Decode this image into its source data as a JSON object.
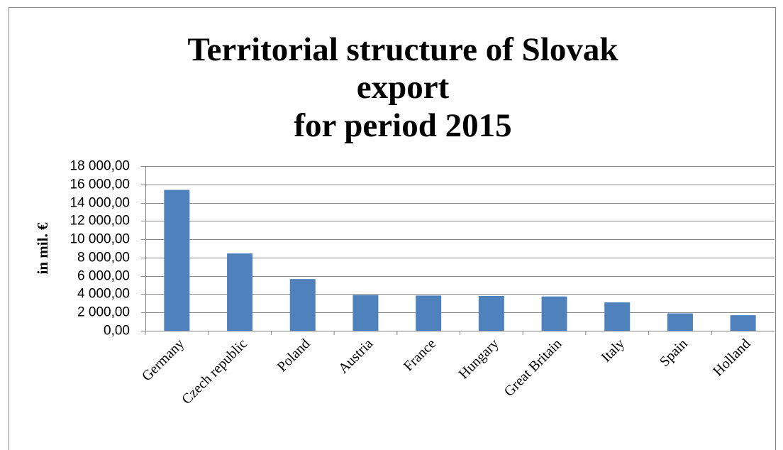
{
  "chart_data": {
    "type": "bar",
    "title": [
      "Territorial structure of Slovak",
      "export",
      "for period 2015"
    ],
    "ylabel": "in mil. €",
    "categories": [
      "Germany",
      "Czech republic",
      "Poland",
      "Austria",
      "France",
      "Hungary",
      "Great Britain",
      "Italy",
      "Spain",
      "Holland"
    ],
    "values": [
      15400,
      8450,
      5650,
      3900,
      3850,
      3800,
      3750,
      3100,
      1900,
      1700
    ],
    "color": "#4f81bd",
    "ylim": [
      0,
      18000
    ],
    "yticks": [
      {
        "value": 0,
        "label": "0,00"
      },
      {
        "value": 2000,
        "label": "2 000,00"
      },
      {
        "value": 4000,
        "label": "4 000,00"
      },
      {
        "value": 6000,
        "label": "6 000,00"
      },
      {
        "value": 8000,
        "label": "8 000,00"
      },
      {
        "value": 10000,
        "label": "10 000,00"
      },
      {
        "value": 12000,
        "label": "12 000,00"
      },
      {
        "value": 14000,
        "label": "14 000,00"
      },
      {
        "value": 16000,
        "label": "16 000,00"
      },
      {
        "value": 18000,
        "label": "18 000,00"
      }
    ],
    "grid": true
  }
}
